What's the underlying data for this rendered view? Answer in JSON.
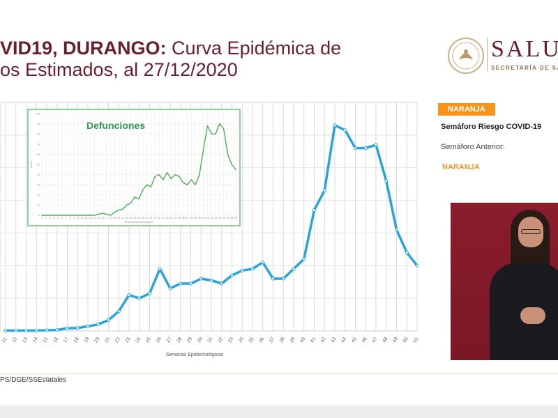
{
  "title": {
    "bold": "VID19, DURANGO:",
    "rest": " Curva Epidémica de",
    "line2": "os Estimados, al 27/12/2020"
  },
  "logo": {
    "name": "SALU",
    "subtitle": "SECRETARÍA DE SALU",
    "icon": "eagle-seal-icon"
  },
  "panel": {
    "badge": "NARANJA",
    "risk_title": "Semáforo Riesgo COVID-19",
    "previous_label": "Semáforo Anterior:",
    "previous_value": "NARANJA",
    "badge_color": "#f7941d"
  },
  "source": "PS/DGE/SSEstatales",
  "colors": {
    "main_line": "#29a3dc",
    "inset_line": "#4caf50",
    "title": "#6b1f2a"
  },
  "chart_data": [
    {
      "type": "line",
      "xlabel": "Semanas Epidemiológicas",
      "x": [
        "11",
        "12",
        "13",
        "14",
        "15",
        "16",
        "17",
        "18",
        "19",
        "20",
        "21",
        "22",
        "23",
        "24",
        "25",
        "26",
        "27",
        "28",
        "29",
        "30",
        "31",
        "32",
        "33",
        "34",
        "35",
        "36",
        "37",
        "38",
        "39",
        "40",
        "41",
        "42",
        "43",
        "44",
        "45",
        "46",
        "47",
        "48",
        "49",
        "50",
        "51"
      ],
      "values": [
        1,
        1,
        1,
        1,
        2,
        3,
        8,
        9,
        14,
        20,
        33,
        60,
        110,
        100,
        115,
        190,
        130,
        145,
        145,
        160,
        155,
        145,
        170,
        185,
        190,
        210,
        160,
        160,
        190,
        220,
        370,
        430,
        630,
        615,
        560,
        560,
        570,
        460,
        310,
        240,
        200
      ],
      "ylim": [
        0,
        700
      ],
      "grid": true
    },
    {
      "type": "line",
      "title": "Defunciones",
      "xlabel": "Semanas Epidemiológicas",
      "ylabel": "Casos",
      "x": [
        "1",
        "2",
        "3",
        "4",
        "5",
        "6",
        "7",
        "8",
        "9",
        "10",
        "11",
        "12",
        "13",
        "14",
        "15",
        "16",
        "17",
        "18",
        "19",
        "20",
        "21",
        "22",
        "23",
        "24",
        "25",
        "26",
        "27",
        "28",
        "29",
        "30",
        "31",
        "32",
        "33",
        "34",
        "35",
        "36",
        "37",
        "38",
        "39",
        "40",
        "41",
        "42",
        "43",
        "44",
        "45",
        "46",
        "47",
        "48",
        "49"
      ],
      "values": [
        0,
        0,
        0,
        0,
        0,
        0,
        0,
        0,
        0,
        0,
        0,
        0,
        0,
        0,
        1,
        2,
        1,
        0,
        3,
        5,
        6,
        10,
        12,
        18,
        16,
        25,
        30,
        28,
        38,
        40,
        35,
        42,
        36,
        40,
        38,
        32,
        30,
        35,
        30,
        40,
        65,
        88,
        80,
        80,
        90,
        85,
        60,
        50,
        45
      ],
      "ylim": [
        0,
        100
      ],
      "grid": true
    }
  ]
}
